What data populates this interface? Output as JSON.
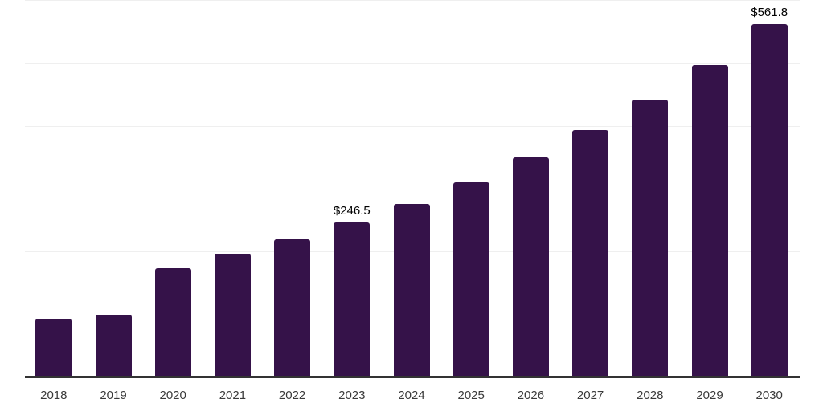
{
  "chart_data": {
    "type": "bar",
    "title": "",
    "xlabel": "",
    "ylabel": "",
    "categories": [
      "2018",
      "2019",
      "2020",
      "2021",
      "2022",
      "2023",
      "2024",
      "2025",
      "2026",
      "2027",
      "2028",
      "2029",
      "2030"
    ],
    "values": [
      93,
      100,
      174,
      197,
      220,
      246.5,
      276,
      310,
      350,
      393,
      442,
      497,
      561.8
    ],
    "bar_labels": [
      "",
      "",
      "",
      "",
      "",
      "$246.5",
      "",
      "",
      "",
      "",
      "",
      "",
      "$561.8"
    ],
    "ylim": [
      0,
      600
    ],
    "gridline_step": 100,
    "grid": "horizontal",
    "legend_position": "none",
    "y_axis_labels_visible": false,
    "colors": {
      "bar": "#351249",
      "axis_line": "#333333",
      "gridline": "#efefef",
      "tick_label": "#3a3a3a",
      "data_label": "#000000",
      "background": "#ffffff"
    }
  }
}
